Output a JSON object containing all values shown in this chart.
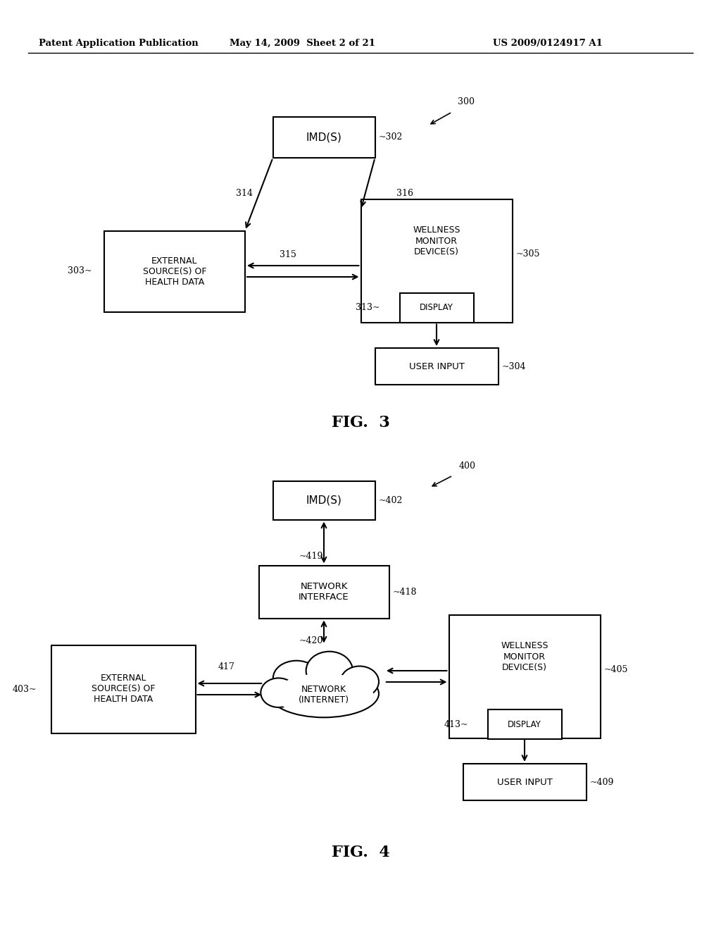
{
  "background_color": "#ffffff",
  "header_left": "Patent Application Publication",
  "header_mid": "May 14, 2009  Sheet 2 of 21",
  "header_right": "US 2009/0124917 A1",
  "page_width": 10.24,
  "page_height": 13.2
}
